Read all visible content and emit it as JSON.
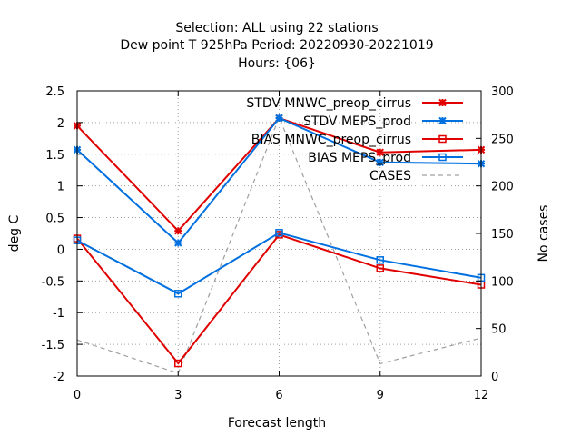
{
  "chart_data": {
    "type": "line",
    "title_lines": [
      "Selection: ALL using    22 stations",
      "Dew point T 925hPa   Period: 20220930-20221019",
      "Hours: {06}"
    ],
    "xlabel": "Forecast length",
    "ylabel": "deg C",
    "y2label": "No cases",
    "x": [
      0,
      3,
      6,
      9,
      12
    ],
    "x_ticks": [
      "0",
      "3",
      "6",
      "9",
      "12"
    ],
    "ylim": [
      -2,
      2.5
    ],
    "y_ticks": [
      "-2",
      "-1.5",
      "-1",
      "-0.5",
      "0",
      "0.5",
      "1",
      "1.5",
      "2",
      "2.5"
    ],
    "y2lim": [
      0,
      300
    ],
    "y2_ticks": [
      "0",
      "50",
      "100",
      "150",
      "200",
      "250",
      "300"
    ],
    "grid": true,
    "legend_position": "top-right",
    "series": [
      {
        "name": "STDV MNWC_preop_cirrus",
        "axis": "y",
        "color": "#e00000",
        "marker": "star",
        "dash": false,
        "values": [
          1.95,
          0.29,
          2.07,
          1.53,
          1.57
        ]
      },
      {
        "name": "STDV MEPS_prod",
        "axis": "y",
        "color": "#0070e0",
        "marker": "star",
        "dash": false,
        "values": [
          1.57,
          0.1,
          2.07,
          1.37,
          1.35
        ]
      },
      {
        "name": "BIAS MNWC_preop_cirrus",
        "axis": "y",
        "color": "#e00000",
        "marker": "square",
        "dash": false,
        "values": [
          0.17,
          -1.8,
          0.23,
          -0.3,
          -0.56
        ]
      },
      {
        "name": "BIAS MEPS_prod",
        "axis": "y",
        "color": "#0070e0",
        "marker": "square",
        "dash": false,
        "values": [
          0.14,
          -0.7,
          0.26,
          -0.17,
          -0.45
        ]
      },
      {
        "name": "CASES",
        "axis": "y2",
        "color": "#a0a0a0",
        "marker": "none",
        "dash": true,
        "values": [
          38,
          3,
          272,
          13,
          40
        ]
      }
    ]
  }
}
